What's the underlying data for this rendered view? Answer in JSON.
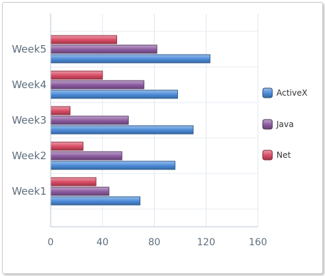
{
  "chart_data": {
    "type": "bar",
    "orientation": "horizontal",
    "categories": [
      "Week1",
      "Week2",
      "Week3",
      "Week4",
      "Week5"
    ],
    "series": [
      {
        "name": "ActiveX",
        "color": "#4a8ad8",
        "values": [
          69,
          96,
          110,
          98,
          123
        ]
      },
      {
        "name": "Java",
        "color": "#8a5a9e",
        "values": [
          45,
          55,
          60,
          72,
          82
        ]
      },
      {
        "name": "Net",
        "color": "#d84a63",
        "values": [
          35,
          25,
          15,
          40,
          51
        ]
      }
    ],
    "x_ticks": [
      0,
      40,
      80,
      120,
      160
    ],
    "xlim": [
      0,
      160
    ],
    "grid": true,
    "legend": "right",
    "title": "",
    "xlabel": "",
    "ylabel": ""
  }
}
